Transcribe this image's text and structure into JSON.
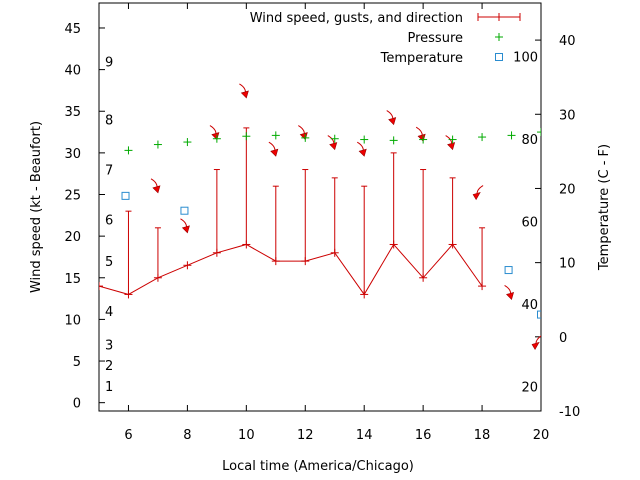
{
  "chart_data": {
    "type": "line",
    "xlabel": "Local time (America/Chicago)",
    "ylabel_left": "Wind speed (kt - Beaufort)",
    "ylabel_right": "Temperature (C - F)",
    "xlim": [
      5,
      20
    ],
    "x_ticks": [
      6,
      8,
      10,
      12,
      14,
      16,
      18,
      20
    ],
    "ylim_left": [
      -1,
      48
    ],
    "y_ticks_left": [
      0,
      5,
      10,
      15,
      20,
      25,
      30,
      35,
      40,
      45
    ],
    "ylim_right_celsius": [
      -10,
      45
    ],
    "y_ticks_right_celsius": [
      -10,
      0,
      10,
      20,
      30,
      40
    ],
    "fahrenheit_labels": [
      {
        "value_f": 20,
        "label": "20"
      },
      {
        "value_f": 40,
        "label": "40"
      },
      {
        "value_f": 60,
        "label": "60"
      },
      {
        "value_f": 80,
        "label": "80"
      },
      {
        "value_f": 100,
        "label": "100"
      }
    ],
    "beaufort_labels": [
      {
        "kt": 2,
        "label": "1"
      },
      {
        "kt": 4.5,
        "label": "2"
      },
      {
        "kt": 7,
        "label": "3"
      },
      {
        "kt": 11,
        "label": "4"
      },
      {
        "kt": 17,
        "label": "5"
      },
      {
        "kt": 22,
        "label": "6"
      },
      {
        "kt": 28,
        "label": "7"
      },
      {
        "kt": 34,
        "label": "8"
      },
      {
        "kt": 41,
        "label": "9"
      }
    ],
    "legend_position": "top-right",
    "series": [
      {
        "name": "Wind speed, gusts, and direction",
        "color": "#cc0000",
        "x": [
          5,
          6,
          7,
          8,
          9,
          10,
          11,
          12,
          13,
          14,
          15,
          16,
          17,
          18,
          19,
          20
        ],
        "speed": [
          14,
          13,
          15,
          16.5,
          18,
          19,
          17,
          17,
          18,
          13,
          19,
          15,
          19,
          14,
          null,
          null
        ],
        "gusts": [
          null,
          23,
          21,
          null,
          28,
          33,
          26,
          28,
          27,
          26,
          30,
          28,
          27,
          21,
          null,
          null
        ]
      },
      {
        "name": "Pressure",
        "color": "#00aa00",
        "x": [
          6,
          7,
          8,
          9,
          10,
          11,
          12,
          13,
          14,
          15,
          16,
          17,
          18,
          19,
          20
        ],
        "values": [
          30.3,
          31.0,
          31.3,
          31.7,
          32.0,
          32.1,
          31.8,
          31.7,
          31.6,
          31.5,
          31.6,
          31.6,
          31.9,
          32.1,
          32.5
        ]
      },
      {
        "name": "Temperature",
        "color": "#2a8ccf",
        "x": [
          5.9,
          7.9,
          18.9,
          20
        ],
        "values_celsius": [
          19,
          17,
          9,
          3
        ]
      }
    ],
    "wind_direction_arrows": [
      {
        "x": 6.9,
        "kt": 25.8,
        "toward": "down-right"
      },
      {
        "x": 7.9,
        "kt": 21.0,
        "toward": "down-right"
      },
      {
        "x": 8.9,
        "kt": 32.2,
        "toward": "down-right"
      },
      {
        "x": 9.9,
        "kt": 37.2,
        "toward": "down-right"
      },
      {
        "x": 10.9,
        "kt": 30.2,
        "toward": "down-right"
      },
      {
        "x": 11.9,
        "kt": 32.2,
        "toward": "down-right"
      },
      {
        "x": 12.9,
        "kt": 31.0,
        "toward": "down-right"
      },
      {
        "x": 13.9,
        "kt": 30.2,
        "toward": "down-right"
      },
      {
        "x": 14.9,
        "kt": 34.0,
        "toward": "down-right"
      },
      {
        "x": 15.9,
        "kt": 32.0,
        "toward": "down-right"
      },
      {
        "x": 16.9,
        "kt": 31.0,
        "toward": "down-right"
      },
      {
        "x": 17.9,
        "kt": 25.0,
        "toward": "down-left"
      },
      {
        "x": 18.9,
        "kt": 13.0,
        "toward": "down-right"
      },
      {
        "x": 19.9,
        "kt": 7.0,
        "toward": "down-left"
      }
    ]
  }
}
